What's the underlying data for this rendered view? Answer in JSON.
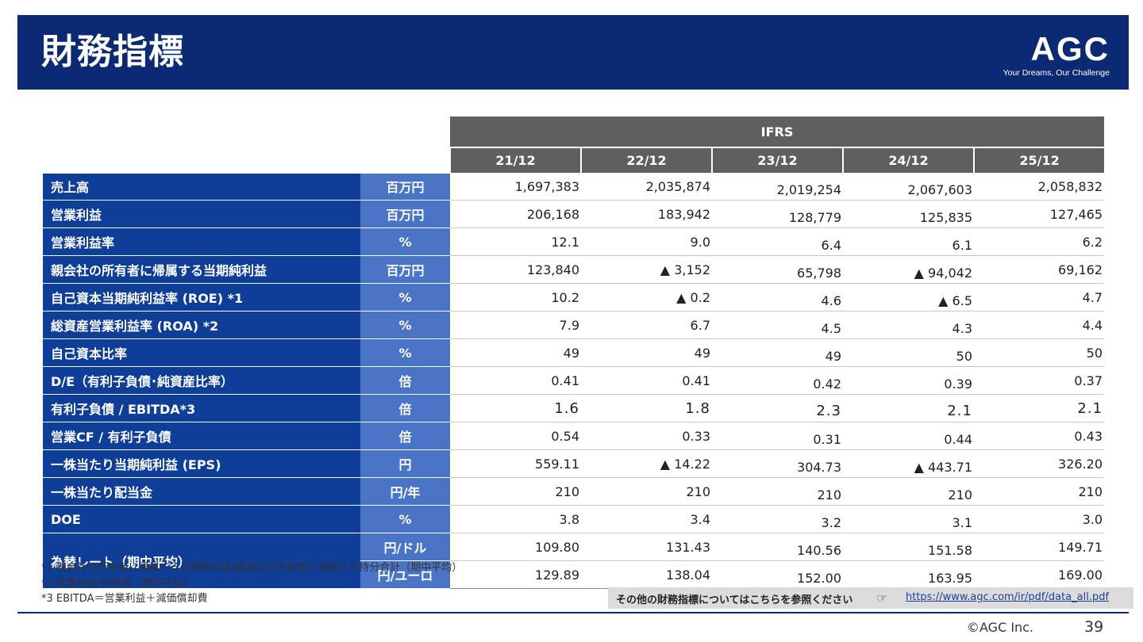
{
  "header": {
    "title": "財務指標",
    "logo": {
      "text": "AGC",
      "tagline": "Your Dreams, Our Challenge"
    }
  },
  "table": {
    "standard": "IFRS",
    "years": [
      "21/12",
      "22/12",
      "23/12",
      "24/12",
      "25/12"
    ],
    "rows": [
      {
        "label": "売上高",
        "unit": "百万円",
        "values": [
          "1,697,383",
          "2,035,874",
          "2,019,254",
          "2,067,603",
          "2,058,832"
        ]
      },
      {
        "label": "営業利益",
        "unit": "百万円",
        "values": [
          "206,168",
          "183,942",
          "128,779",
          "125,835",
          "127,465"
        ]
      },
      {
        "label": "営業利益率",
        "unit": "%",
        "values": [
          "12.1",
          "9.0",
          "6.4",
          "6.1",
          "6.2"
        ]
      },
      {
        "label": "親会社の所有者に帰属する当期純利益",
        "unit": "百万円",
        "values": [
          "123,840",
          "▲ 3,152",
          "65,798",
          "▲ 94,042",
          "69,162"
        ]
      },
      {
        "label": "自己資本当期純利益率 (ROE) *1",
        "unit": "%",
        "values": [
          "10.2",
          "▲ 0.2",
          "4.6",
          "▲ 6.5",
          "4.7"
        ]
      },
      {
        "label": "総資産営業利益率 (ROA) *2",
        "unit": "%",
        "values": [
          "7.9",
          "6.7",
          "4.5",
          "4.3",
          "4.4"
        ]
      },
      {
        "label": "自己資本比率",
        "unit": "%",
        "values": [
          "49",
          "49",
          "49",
          "50",
          "50"
        ]
      },
      {
        "label": "D/E（有利子負債･純資産比率）",
        "unit": "倍",
        "values": [
          "0.41",
          "0.41",
          "0.42",
          "0.39",
          "0.37"
        ]
      },
      {
        "label": "有利子負債 / EBITDA*3",
        "unit": "倍",
        "values": [
          "1.6",
          "1.8",
          "2.3",
          "2.1",
          "2.1"
        ]
      },
      {
        "label": "営業CF / 有利子負債",
        "unit": "倍",
        "values": [
          "0.54",
          "0.33",
          "0.31",
          "0.44",
          "0.43"
        ]
      },
      {
        "label": "一株当たり当期純利益 (EPS)",
        "unit": "円",
        "values": [
          "559.11",
          "▲ 14.22",
          "304.73",
          "▲ 443.71",
          "326.20"
        ]
      },
      {
        "label": "一株当たり配当金",
        "unit": "円/年",
        "values": [
          "210",
          "210",
          "210",
          "210",
          "210"
        ]
      },
      {
        "label": "DOE",
        "unit": "%",
        "values": [
          "3.8",
          "3.4",
          "3.2",
          "3.1",
          "3.0"
        ]
      }
    ],
    "fx": {
      "label": "為替レート（期中平均）",
      "rows": [
        {
          "unit": "円/ドル",
          "values": [
            "109.80",
            "131.43",
            "140.56",
            "151.58",
            "149.71"
          ]
        },
        {
          "unit": "円/ユーロ",
          "values": [
            "129.89",
            "138.04",
            "152.00",
            "163.95",
            "169.00"
          ]
        }
      ]
    }
  },
  "notes": [
    "*1 親会社の所有者に帰属する当期純利益/親会社の所有者に帰属する持分合計（期中平均）",
    "*2 営業利益/総資産（期中平均）",
    "*3 EBITDA＝営業利益＋減価償却費"
  ],
  "reference": {
    "text": "その他の財務指標についてはこちらを参照ください",
    "icon": "pointing-hand-icon",
    "url": "https://www.agc.com/ir/pdf/data_all.pdf"
  },
  "footer": {
    "copyright": "©AGC Inc.",
    "page": "39"
  },
  "colors": {
    "header": "#0b2a73",
    "label_bg": "#0f3e99",
    "unit_bg": "#4a74c6",
    "year_bg": "#5f5f5f"
  }
}
